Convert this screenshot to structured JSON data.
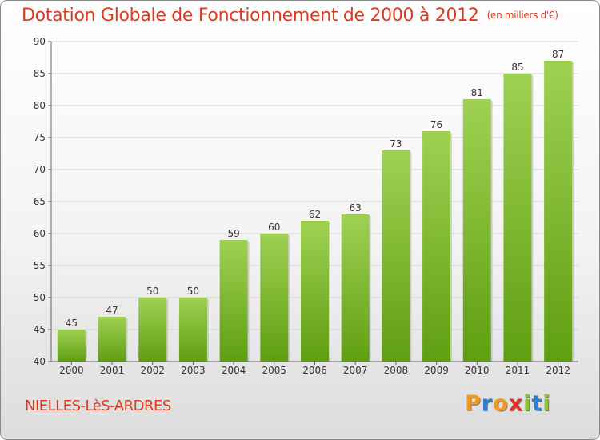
{
  "header": {
    "title": "Dotation Globale de Fonctionnement de 2000 à 2012",
    "subtitle": "(en milliers d'€)"
  },
  "footer": {
    "commune": "NIELLES-LèS-ARDRES",
    "logo_letters": [
      "P",
      "r",
      "o",
      "x",
      "i",
      "t",
      "i"
    ]
  },
  "colors": {
    "title": "#e03a1e",
    "bar_top": "#9fd152",
    "bar_bottom": "#5f9e12",
    "logo": [
      "#f29a1c",
      "#2f7fd1",
      "#f29a1c",
      "#e0302a",
      "#8cc43a",
      "#2f7fd1",
      "#8cc43a"
    ]
  },
  "chart_data": {
    "type": "bar",
    "categories": [
      "2000",
      "2001",
      "2002",
      "2003",
      "2004",
      "2005",
      "2006",
      "2007",
      "2008",
      "2009",
      "2010",
      "2011",
      "2012"
    ],
    "values": [
      45,
      47,
      50,
      50,
      59,
      60,
      62,
      63,
      73,
      76,
      81,
      85,
      87
    ],
    "title": "Dotation Globale de Fonctionnement de 2000 à 2012",
    "subtitle": "(en milliers d'€)",
    "xlabel": "",
    "ylabel": "",
    "ylim": [
      40,
      90
    ],
    "yticks": [
      40,
      45,
      50,
      55,
      60,
      65,
      70,
      75,
      80,
      85,
      90
    ],
    "grid": true,
    "legend": "none"
  }
}
